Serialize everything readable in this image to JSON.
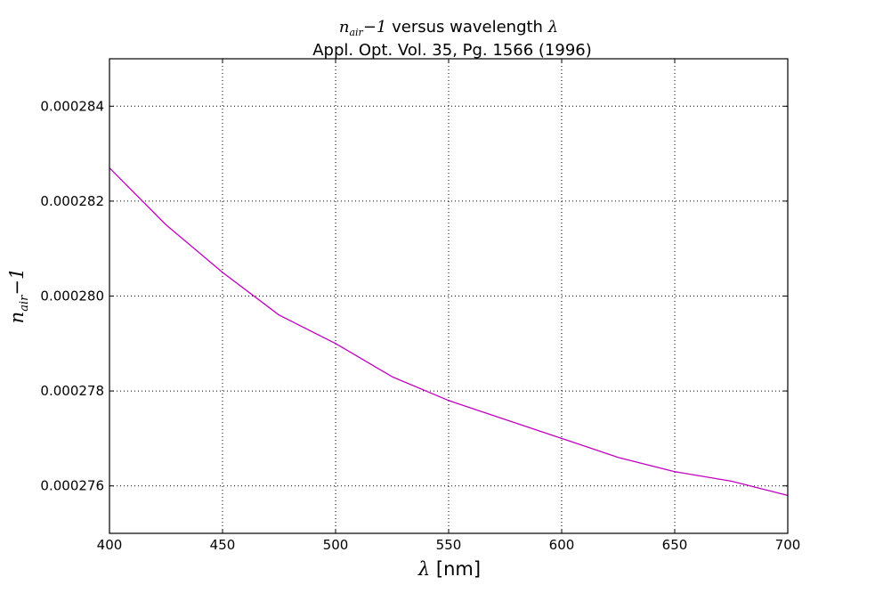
{
  "chart_data": {
    "type": "line",
    "title": {
      "line1": {
        "math_symbol": "n",
        "math_subscript": "air",
        "math_suffix": "−1",
        "text": " versus wavelength ",
        "math_lambda": "λ"
      },
      "line2": "Appl. Opt. Vol. 35, Pg. 1566 (1996)"
    },
    "xlabel": {
      "math_lambda": "λ",
      "text": " [nm]"
    },
    "ylabel": {
      "math_symbol": "n",
      "math_subscript": "air",
      "math_suffix": "−1"
    },
    "xlim": [
      400,
      700
    ],
    "ylim": [
      0.000275,
      0.000285
    ],
    "x_ticks": [
      400,
      450,
      500,
      550,
      600,
      650,
      700
    ],
    "x_tick_labels": [
      "400",
      "450",
      "500",
      "550",
      "600",
      "650",
      "700"
    ],
    "y_ticks": [
      0.000276,
      0.000278,
      0.00028,
      0.000282,
      0.000284
    ],
    "y_tick_labels": [
      "0.000276",
      "0.000278",
      "0.000280",
      "0.000282",
      "0.000284"
    ],
    "grid": true,
    "series": [
      {
        "color": "#bf00bf",
        "x": [
          400,
          425,
          450,
          475,
          500,
          525,
          550,
          575,
          600,
          625,
          650,
          675,
          700
        ],
        "y": [
          0.0002827,
          0.0002815,
          0.0002805,
          0.0002796,
          0.000279,
          0.0002783,
          0.0002778,
          0.0002774,
          0.000277,
          0.0002766,
          0.0002763,
          0.0002761,
          0.0002758
        ]
      }
    ]
  }
}
